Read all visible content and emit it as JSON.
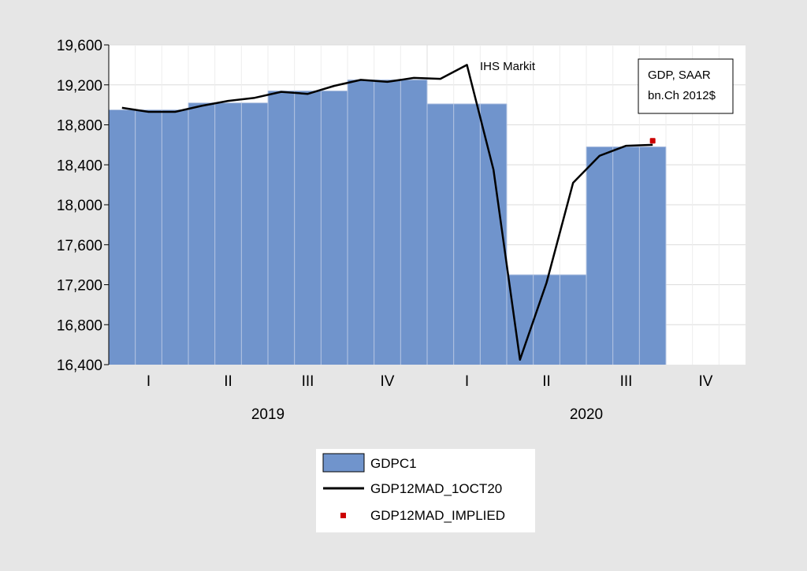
{
  "chart_data": {
    "type": "bar",
    "info_box": [
      "GDP, SAAR",
      "bn.Ch 2012$"
    ],
    "annotation": "IHS Markit",
    "ylim": [
      16400,
      19600
    ],
    "yticks": [
      16400,
      16800,
      17200,
      17600,
      18000,
      18400,
      18800,
      19200,
      19600
    ],
    "ytick_labels": [
      "16,400",
      "16,800",
      "17,200",
      "17,600",
      "18,000",
      "18,400",
      "18,800",
      "19,200",
      "19,600"
    ],
    "grid": true,
    "quarters": [
      {
        "label": "I",
        "year": "2019"
      },
      {
        "label": "II",
        "year": "2019"
      },
      {
        "label": "III",
        "year": "2019"
      },
      {
        "label": "IV",
        "year": "2019"
      },
      {
        "label": "I",
        "year": "2020"
      },
      {
        "label": "II",
        "year": "2020"
      },
      {
        "label": "III",
        "year": "2020"
      },
      {
        "label": "IV",
        "year": "2020"
      }
    ],
    "year_labels": [
      "2019",
      "2020"
    ],
    "series": [
      {
        "name": "GDPC1",
        "type": "bar",
        "color": "#7094cc",
        "values": [
          18950,
          19020,
          19140,
          19250,
          19010,
          17300,
          18580,
          null
        ]
      },
      {
        "name": "GDP12MAD_1OCT20",
        "type": "line",
        "color": "#000000",
        "x_month": [
          0,
          1,
          2,
          3,
          4,
          5,
          6,
          7,
          8,
          9,
          10,
          11,
          12,
          13,
          14,
          15,
          16,
          17,
          18,
          19,
          20
        ],
        "values": [
          18970,
          18930,
          18930,
          18990,
          19040,
          19070,
          19130,
          19110,
          19190,
          19250,
          19230,
          19270,
          19260,
          19400,
          18350,
          16450,
          17220,
          18220,
          18490,
          18590,
          18600
        ]
      },
      {
        "name": "GDP12MAD_IMPLIED",
        "type": "point",
        "color": "#cc0000",
        "x_month": [
          20
        ],
        "values": [
          18640
        ]
      }
    ],
    "legend_position": "bottom-center"
  }
}
